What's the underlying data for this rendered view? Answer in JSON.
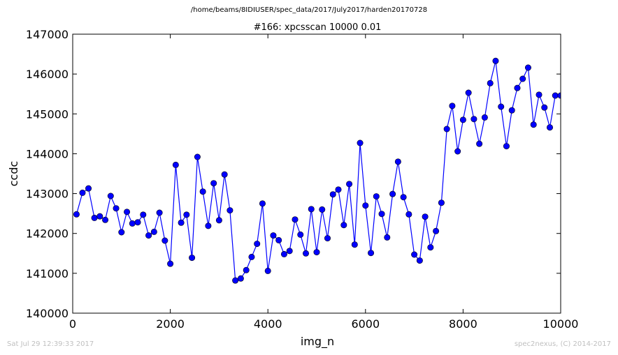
{
  "figure": {
    "suptitle": "/home/beams/8IDIUSER/spec_data/2017/July2017/harden20170728",
    "footer_left": "Sat Jul 29 12:39:33 2017",
    "footer_right": "spec2nexus, (C) 2014-2017"
  },
  "chart_data": {
    "type": "line",
    "title": "#166: xpcsscan 10000 0.01",
    "xlabel": "img_n",
    "ylabel": "ccdc",
    "xlim": [
      0,
      10000
    ],
    "ylim": [
      140000,
      147000
    ],
    "xticks": [
      0,
      2000,
      4000,
      6000,
      8000,
      10000
    ],
    "yticks": [
      140000,
      141000,
      142000,
      143000,
      144000,
      145000,
      146000,
      147000
    ],
    "grid": false,
    "legend": "none",
    "color": "#0000ff",
    "marker": "circle",
    "series": [
      {
        "x": [
          78,
          200,
          323,
          445,
          556,
          667,
          778,
          889,
          1000,
          1111,
          1222,
          1333,
          1444,
          1556,
          1667,
          1778,
          1889,
          2000,
          2111,
          2222,
          2333,
          2444,
          2556,
          2667,
          2778,
          2889,
          3000,
          3111,
          3222,
          3333,
          3444,
          3556,
          3667,
          3778,
          3889,
          4000,
          4111,
          4222,
          4333,
          4444,
          4556,
          4667,
          4778,
          4889,
          5000,
          5111,
          5222,
          5333,
          5444,
          5556,
          5667,
          5778,
          5889,
          6000,
          6111,
          6222,
          6333,
          6444,
          6556,
          6667,
          6778,
          6889,
          7000,
          7111,
          7222,
          7333,
          7444,
          7556,
          7667,
          7778,
          7889,
          8000,
          8111,
          8222,
          8333,
          8444,
          8556,
          8667,
          8778,
          8889,
          9000,
          9111,
          9222,
          9333,
          9444,
          9556,
          9667,
          9778,
          9889,
          10000
        ],
        "y": [
          142480,
          143020,
          143130,
          142390,
          142430,
          142340,
          142940,
          142630,
          142030,
          142540,
          142250,
          142280,
          142470,
          141950,
          142040,
          142520,
          141820,
          141240,
          143720,
          142270,
          142470,
          141390,
          143920,
          143050,
          142190,
          143260,
          142330,
          143480,
          142580,
          140820,
          140870,
          141080,
          141410,
          141740,
          142750,
          141060,
          141950,
          141830,
          141480,
          141560,
          142350,
          141970,
          141500,
          142610,
          141530,
          142600,
          141880,
          142980,
          143100,
          142210,
          143240,
          141720,
          144270,
          142700,
          141510,
          142930,
          142490,
          141900,
          142990,
          143800,
          142910,
          142480,
          141470,
          141320,
          142420,
          141650,
          142060,
          142770,
          144620,
          145200,
          144060,
          144850,
          145530,
          144870,
          144250,
          144910,
          145770,
          146330,
          145180,
          144190,
          145090,
          145650,
          145880,
          146160,
          144730,
          145480,
          145160,
          144660,
          145460,
          145460
        ]
      }
    ]
  }
}
